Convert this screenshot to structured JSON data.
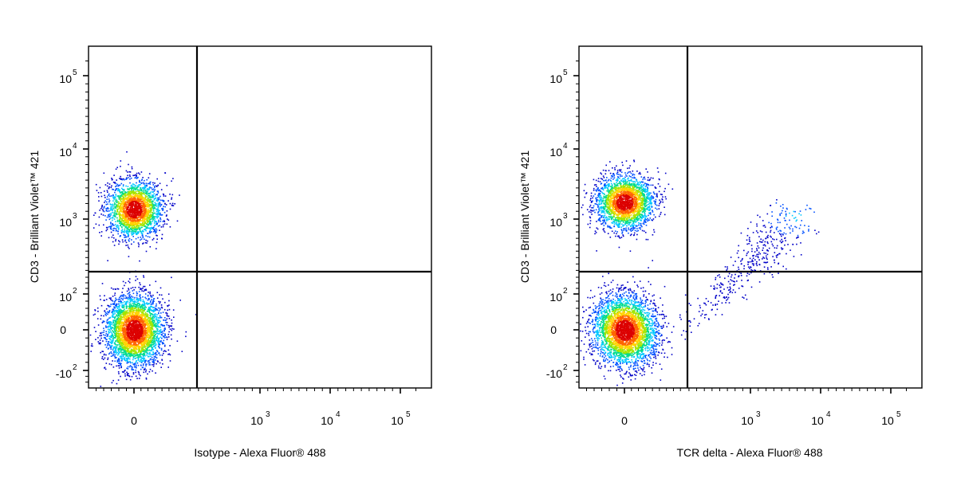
{
  "chart_data": [
    {
      "type": "scatter",
      "subtype": "flow-cytometry density dot plot",
      "xlabel": "Isotype -  Alexa Fluor® 488",
      "ylabel": "CD3 - Brilliant Violet™ 421",
      "x_scale": "biexponential",
      "y_scale": "biexponential",
      "x_ticks": [
        {
          "value": 0,
          "base": "0",
          "exp": ""
        },
        {
          "value": 1000,
          "base": "10",
          "exp": "3"
        },
        {
          "value": 10000,
          "base": "10",
          "exp": "4"
        },
        {
          "value": 100000,
          "base": "10",
          "exp": "5"
        }
      ],
      "y_ticks": [
        {
          "value": -100,
          "base": "-10",
          "exp": "2"
        },
        {
          "value": 0,
          "base": "0",
          "exp": ""
        },
        {
          "value": 100,
          "base": "10",
          "exp": "2"
        },
        {
          "value": 1000,
          "base": "10",
          "exp": "3"
        },
        {
          "value": 10000,
          "base": "10",
          "exp": "4"
        },
        {
          "value": 100000,
          "base": "10",
          "exp": "5"
        }
      ],
      "gate": {
        "x": 180,
        "y": 180
      },
      "color_scale": [
        "#0000c8",
        "#0050ff",
        "#00c8ff",
        "#00dc8c",
        "#a0e600",
        "#ffd200",
        "#ff6400",
        "#dc0000"
      ],
      "populations": [
        {
          "name": "",
          "x_center": 0,
          "y_center": 2300,
          "events": 2300
        },
        {
          "name": "",
          "x_center": 0,
          "y_center": 0,
          "events": 3400
        }
      ]
    },
    {
      "type": "scatter",
      "subtype": "flow-cytometry density dot plot",
      "xlabel": "TCR delta -  Alexa Fluor® 488",
      "ylabel": "CD3 - Brilliant Violet™ 421",
      "x_scale": "biexponential",
      "y_scale": "biexponential",
      "x_ticks": [
        {
          "value": 0,
          "base": "0",
          "exp": ""
        },
        {
          "value": 1000,
          "base": "10",
          "exp": "3"
        },
        {
          "value": 10000,
          "base": "10",
          "exp": "4"
        },
        {
          "value": 100000,
          "base": "10",
          "exp": "5"
        }
      ],
      "y_ticks": [
        {
          "value": -100,
          "base": "-10",
          "exp": "2"
        },
        {
          "value": 0,
          "base": "0",
          "exp": ""
        },
        {
          "value": 100,
          "base": "10",
          "exp": "2"
        },
        {
          "value": 1000,
          "base": "10",
          "exp": "3"
        },
        {
          "value": 10000,
          "base": "10",
          "exp": "4"
        },
        {
          "value": 100000,
          "base": "10",
          "exp": "5"
        }
      ],
      "gate": {
        "x": 180,
        "y": 180
      },
      "color_scale": [
        "#0000c8",
        "#0050ff",
        "#00c8ff",
        "#00dc8c",
        "#a0e600",
        "#ffd200",
        "#ff6400",
        "#dc0000"
      ],
      "populations": [
        {
          "name": "",
          "x_center": 0,
          "y_center": 3200,
          "events": 2400
        },
        {
          "name": "",
          "x_center": 0,
          "y_center": 0,
          "events": 3400
        },
        {
          "name": "",
          "x_center": 6500,
          "y_center": 1300,
          "events": 420
        }
      ]
    }
  ]
}
